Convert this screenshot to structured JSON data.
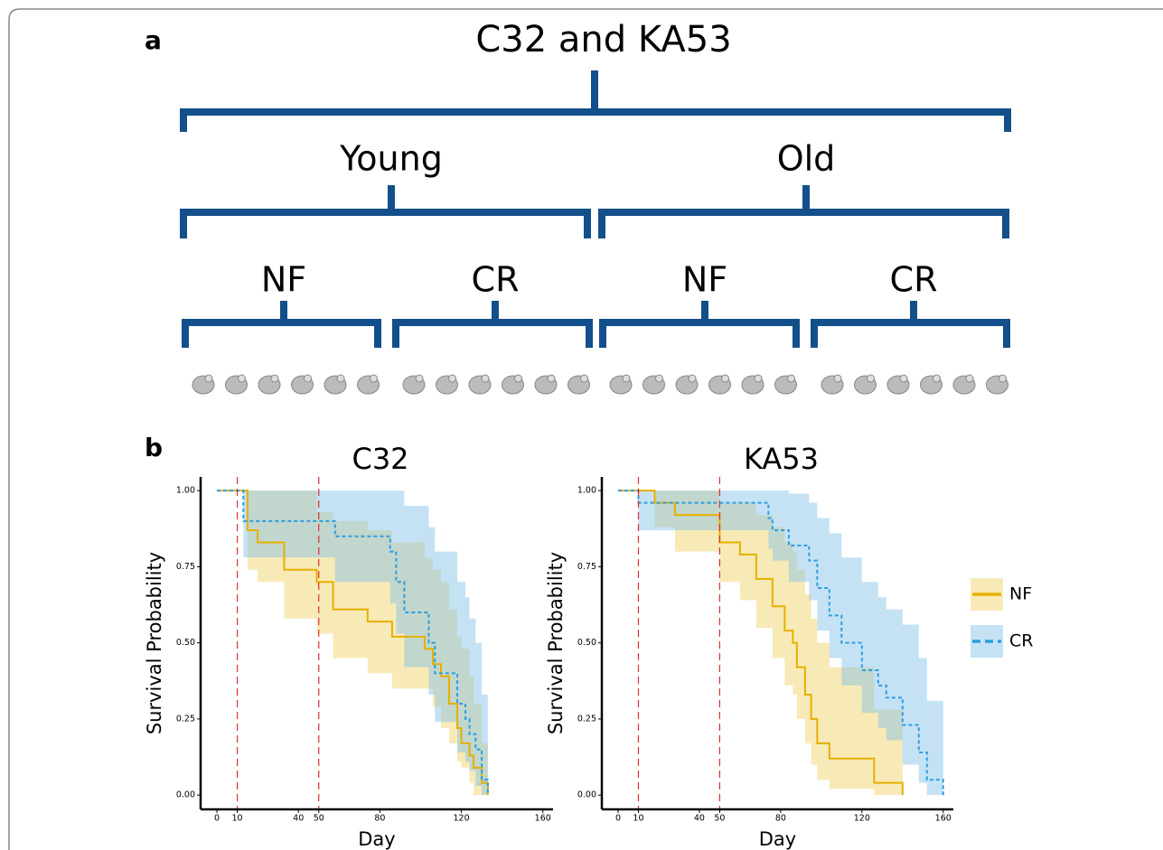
{
  "panel_a": {
    "label": "a",
    "title": "C32 and KA53",
    "groups": [
      {
        "label": "Young",
        "subgroups": [
          "NF",
          "CR"
        ]
      },
      {
        "label": "Old",
        "subgroups": [
          "NF",
          "CR"
        ]
      }
    ]
  },
  "panel_b": {
    "label": "b"
  },
  "chart_data": [
    {
      "type": "step",
      "title": "C32",
      "x_label": "Day",
      "y_label": "Survival Probability",
      "xlim": [
        -8,
        165
      ],
      "ylim": [
        -0.047,
        1.045
      ],
      "xticks": [
        0,
        10,
        40,
        50,
        80,
        120,
        160
      ],
      "yticks": [
        {
          "value": 0,
          "label": "0.00"
        },
        {
          "value": 0.25,
          "label": "0.25"
        },
        {
          "value": 0.5,
          "label": "0.50"
        },
        {
          "value": 0.75,
          "label": "0.75"
        },
        {
          "value": 1,
          "label": "1.00"
        }
      ],
      "vlines": [
        10,
        50
      ],
      "vline_color": "#e03030",
      "legend": "right",
      "series": [
        {
          "name": "NF",
          "color": "#e6b000",
          "band_color": "#f0d060",
          "dash": false,
          "x": [
            0,
            15,
            20,
            33,
            49,
            57,
            74,
            86,
            102,
            106,
            110,
            114,
            118,
            120,
            124,
            126,
            130,
            133
          ],
          "values": [
            1.0,
            0.87,
            0.83,
            0.74,
            0.7,
            0.61,
            0.57,
            0.52,
            0.48,
            0.43,
            0.39,
            0.3,
            0.22,
            0.17,
            0.13,
            0.09,
            0.04,
            0.0
          ],
          "upper": [
            1.0,
            1.0,
            1.0,
            1.0,
            0.93,
            0.9,
            0.87,
            0.83,
            0.78,
            0.74,
            0.7,
            0.61,
            0.52,
            0.48,
            0.39,
            0.3,
            0.17,
            0.04
          ],
          "lower": [
            1.0,
            0.74,
            0.7,
            0.58,
            0.53,
            0.45,
            0.4,
            0.35,
            0.35,
            0.29,
            0.22,
            0.17,
            0.11,
            0.09,
            0.04,
            0.0,
            0.0,
            0.0
          ]
        },
        {
          "name": "CR",
          "color": "#2a9ee0",
          "band_color": "#7fbfe8",
          "dash": true,
          "x": [
            0,
            13,
            58,
            85,
            88,
            92,
            104,
            107,
            118,
            122,
            124,
            127,
            130,
            133
          ],
          "values": [
            1.0,
            0.9,
            0.85,
            0.8,
            0.7,
            0.6,
            0.5,
            0.4,
            0.3,
            0.25,
            0.2,
            0.15,
            0.05,
            0.0
          ],
          "upper": [
            1.0,
            1.0,
            1.0,
            1.0,
            1.0,
            0.95,
            0.88,
            0.8,
            0.7,
            0.65,
            0.58,
            0.5,
            0.33,
            0.0
          ],
          "lower": [
            1.0,
            0.78,
            0.7,
            0.63,
            0.53,
            0.42,
            0.33,
            0.24,
            0.14,
            0.11,
            0.08,
            0.03,
            0.0,
            0.0
          ]
        }
      ]
    },
    {
      "type": "step",
      "title": "KA53",
      "x_label": "Day",
      "y_label": "Survival Probability",
      "xlim": [
        -8,
        165
      ],
      "ylim": [
        -0.047,
        1.045
      ],
      "xticks": [
        0,
        10,
        40,
        50,
        80,
        120,
        160
      ],
      "yticks": [
        {
          "value": 0,
          "label": "0.00"
        },
        {
          "value": 0.25,
          "label": "0.25"
        },
        {
          "value": 0.5,
          "label": "0.50"
        },
        {
          "value": 0.75,
          "label": "0.75"
        },
        {
          "value": 1,
          "label": "1.00"
        }
      ],
      "vlines": [
        10,
        50
      ],
      "vline_color": "#e03030",
      "series": [
        {
          "color": "#e6b000",
          "band_color": "#f0d060",
          "dash": false,
          "x": [
            0,
            18,
            28,
            50,
            60,
            68,
            76,
            82,
            86,
            88,
            92,
            95,
            98,
            104,
            126,
            140
          ],
          "values": [
            1.0,
            0.96,
            0.92,
            0.83,
            0.79,
            0.71,
            0.62,
            0.54,
            0.5,
            0.42,
            0.33,
            0.25,
            0.17,
            0.12,
            0.04,
            0.0
          ],
          "upper": [
            1.0,
            1.0,
            1.0,
            0.96,
            0.96,
            0.92,
            0.88,
            0.83,
            0.8,
            0.74,
            0.66,
            0.58,
            0.5,
            0.42,
            0.28,
            0.28
          ],
          "lower": [
            1.0,
            0.88,
            0.8,
            0.7,
            0.64,
            0.55,
            0.45,
            0.36,
            0.33,
            0.25,
            0.17,
            0.1,
            0.05,
            0.02,
            0.0,
            0.0
          ]
        },
        {
          "color": "#2a9ee0",
          "band_color": "#7fbfe8",
          "dash": true,
          "x": [
            0,
            10,
            74,
            76,
            84,
            94,
            98,
            104,
            110,
            120,
            128,
            132,
            140,
            148,
            152,
            160
          ],
          "values": [
            1.0,
            0.96,
            0.91,
            0.87,
            0.82,
            0.77,
            0.68,
            0.59,
            0.5,
            0.41,
            0.36,
            0.32,
            0.23,
            0.14,
            0.05,
            0.0
          ],
          "upper": [
            1.0,
            1.0,
            1.0,
            1.0,
            0.99,
            0.96,
            0.91,
            0.86,
            0.78,
            0.7,
            0.65,
            0.61,
            0.56,
            0.45,
            0.31,
            0.31
          ],
          "lower": [
            1.0,
            0.87,
            0.81,
            0.77,
            0.7,
            0.64,
            0.54,
            0.45,
            0.36,
            0.27,
            0.22,
            0.18,
            0.1,
            0.04,
            0.0,
            0.0
          ]
        }
      ]
    }
  ]
}
